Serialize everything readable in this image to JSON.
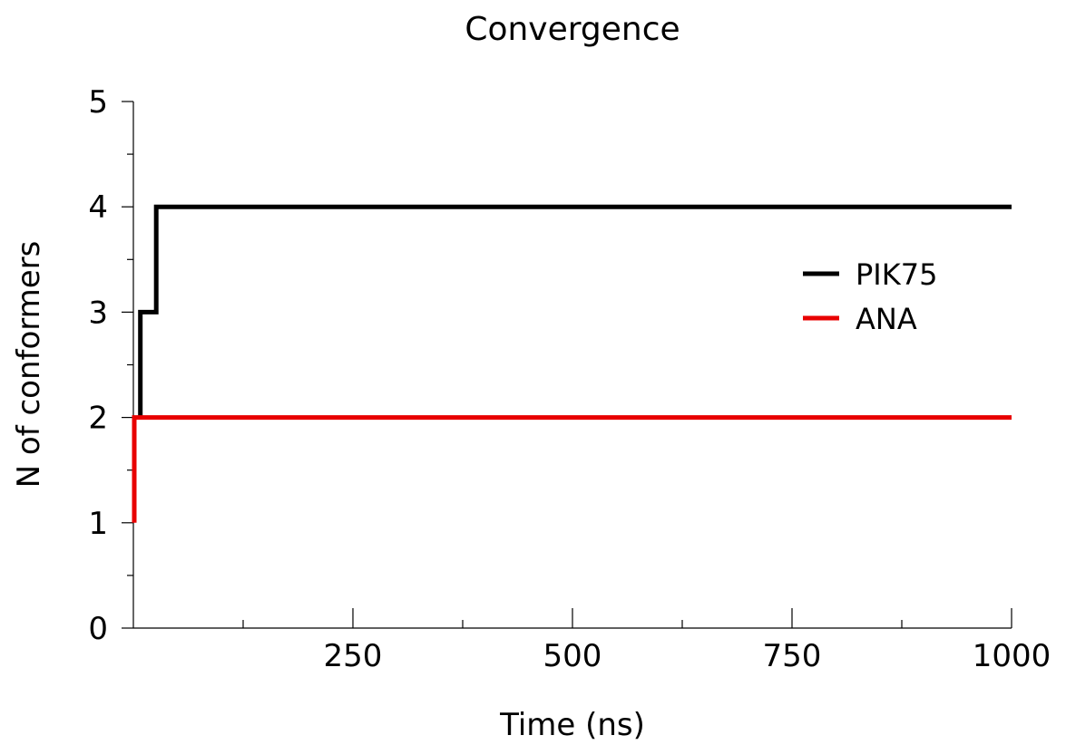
{
  "chart_data": {
    "type": "line",
    "title": "Convergence",
    "xlabel": "Time (ns)",
    "ylabel": "N of conformers",
    "xlim": [
      0,
      1000
    ],
    "ylim": [
      0,
      5
    ],
    "x_ticks": [
      250,
      500,
      750,
      1000
    ],
    "x_tick_labels": [
      "250",
      "500",
      "750",
      "1000"
    ],
    "x_minor_ticks": [
      125,
      375,
      625,
      875
    ],
    "y_ticks": [
      0,
      1,
      2,
      3,
      4,
      5
    ],
    "y_tick_labels": [
      "0",
      "1",
      "2",
      "3",
      "4",
      "5"
    ],
    "y_minor_ticks": [
      0.5,
      1.5,
      2.5,
      3.5,
      4.5
    ],
    "grid": false,
    "legend_position": "right",
    "line_style": "step",
    "series": [
      {
        "name": "PIK75",
        "color": "#000000",
        "points": [
          [
            8,
            2
          ],
          [
            8,
            3
          ],
          [
            26,
            3
          ],
          [
            26,
            4
          ],
          [
            1000,
            4
          ]
        ]
      },
      {
        "name": "ANA",
        "color": "#e80000",
        "points": [
          [
            1,
            1
          ],
          [
            1,
            2
          ],
          [
            1000,
            2
          ]
        ]
      }
    ]
  }
}
